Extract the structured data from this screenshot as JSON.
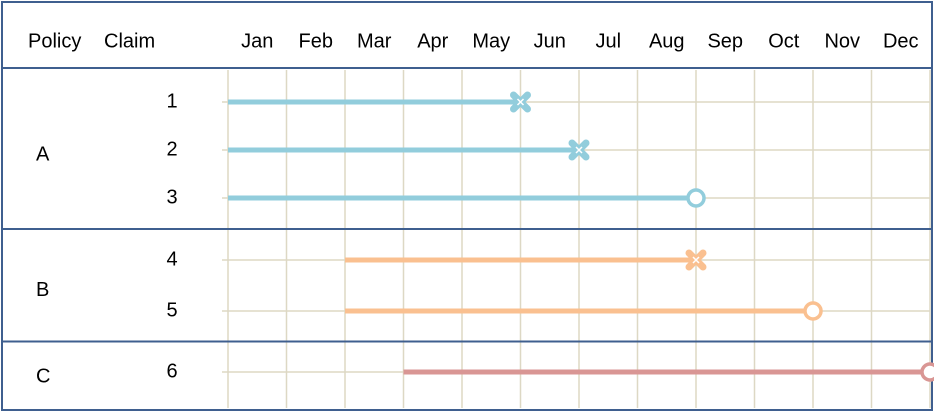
{
  "chart_data": {
    "type": "timeline",
    "headers": [
      "Policy",
      "Claim"
    ],
    "categories": [
      "Jan",
      "Feb",
      "Mar",
      "Apr",
      "May",
      "Jun",
      "Jul",
      "Aug",
      "Sep",
      "Oct",
      "Nov",
      "Dec"
    ],
    "xlim": [
      0,
      12
    ],
    "groups": [
      {
        "label": "A",
        "color": "#92cddc",
        "claims": [
          {
            "label": "1",
            "start": 0,
            "end": 5,
            "marker": "x"
          },
          {
            "label": "2",
            "start": 0,
            "end": 6,
            "marker": "x"
          },
          {
            "label": "3",
            "start": 0,
            "end": 8,
            "marker": "o"
          }
        ]
      },
      {
        "label": "B",
        "color": "#fac090",
        "claims": [
          {
            "label": "4",
            "start": 2,
            "end": 8,
            "marker": "x"
          },
          {
            "label": "5",
            "start": 2,
            "end": 10,
            "marker": "o"
          }
        ]
      },
      {
        "label": "C",
        "color": "#d99694",
        "claims": [
          {
            "label": "6",
            "start": 3,
            "end": 12,
            "marker": "o"
          }
        ]
      }
    ]
  }
}
